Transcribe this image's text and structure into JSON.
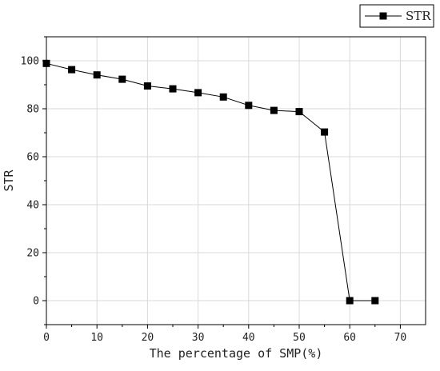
{
  "chart_data": {
    "type": "line",
    "xlabel": "The percentage of SMP(%)",
    "ylabel": "STR",
    "xlim": [
      0,
      75
    ],
    "ylim": [
      -10,
      110
    ],
    "xticks": [
      0,
      10,
      20,
      30,
      40,
      50,
      60,
      70
    ],
    "yticks": [
      0,
      20,
      40,
      60,
      80,
      100
    ],
    "grid": true,
    "legend": "top-right",
    "marker": "square",
    "line_color": "#000000",
    "grid_color": "#d9d9d9",
    "series": [
      {
        "name": "STR",
        "x": [
          0,
          5,
          10,
          15,
          20,
          25,
          30,
          35,
          40,
          45,
          50,
          55,
          60,
          65
        ],
        "y": [
          98.9,
          96.3,
          94.1,
          92.3,
          89.5,
          88.3,
          86.7,
          84.9,
          81.4,
          79.3,
          78.8,
          70.3,
          0,
          0
        ]
      }
    ]
  }
}
